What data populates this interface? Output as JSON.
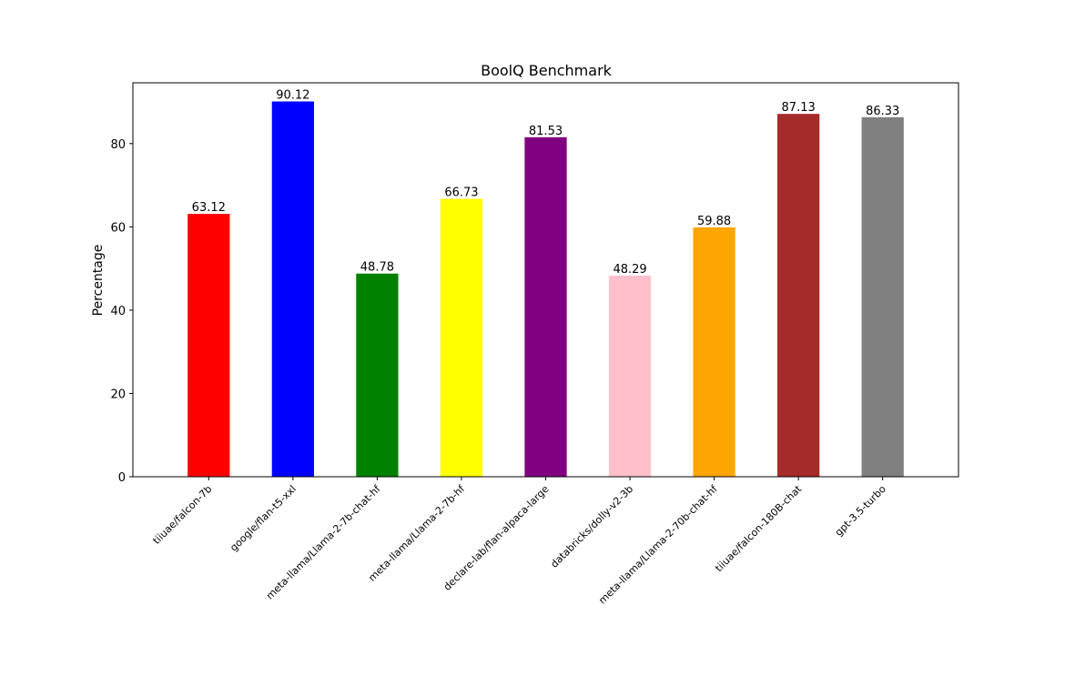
{
  "chart_data": {
    "type": "bar",
    "title": "BoolQ Benchmark",
    "xlabel": "",
    "ylabel": "Percentage",
    "ylim": [
      0,
      94.6
    ],
    "yticks": [
      0,
      20,
      40,
      60,
      80
    ],
    "grid": false,
    "legend": "none",
    "categories": [
      "tiiuae/falcon-7b",
      "google/flan-t5-xxl",
      "meta-llama/Llama-2-7b-chat-hf",
      "meta-llama/Llama-2-7b-hf",
      "declare-lab/flan-alpaca-large",
      "databricks/dolly-v2-3b",
      "meta-llama/Llama-2-70b-chat-hf",
      "tiiuae/falcon-180B-chat",
      "gpt-3.5-turbo"
    ],
    "values": [
      63.12,
      90.12,
      48.78,
      66.73,
      81.53,
      48.29,
      59.88,
      87.13,
      86.33
    ],
    "value_labels": [
      "63.12",
      "90.12",
      "48.78",
      "66.73",
      "81.53",
      "48.29",
      "59.88",
      "87.13",
      "86.33"
    ],
    "colors": [
      "#ff0000",
      "#0000ff",
      "#008000",
      "#ffff00",
      "#800080",
      "#ffc0cb",
      "#ffa500",
      "#a52a2a",
      "#808080"
    ]
  }
}
